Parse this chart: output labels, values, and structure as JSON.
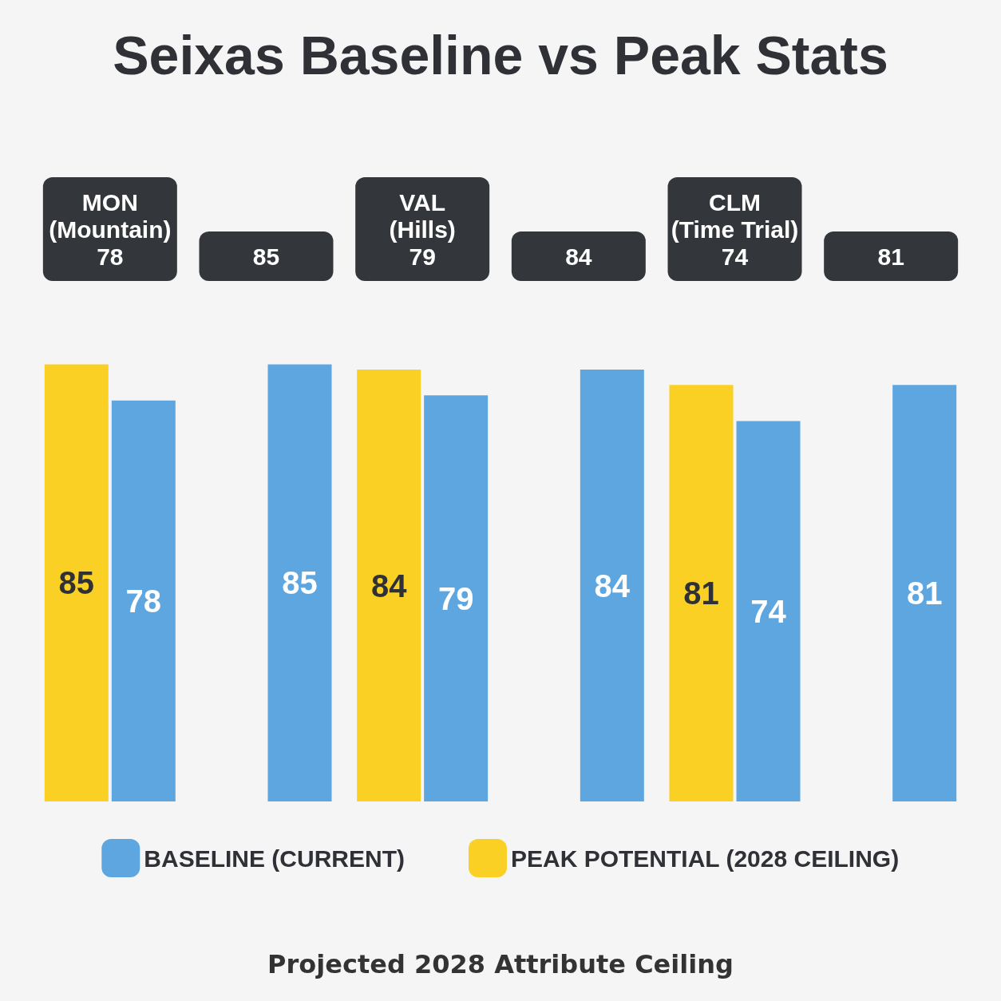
{
  "chart_data": {
    "type": "bar",
    "title": "Seixas Baseline vs Peak Stats",
    "categories": [
      "MON\n(Mountain)\n78",
      "85",
      "VAL\n(Hills)\n79",
      "84",
      "CLM\n(Time Trial)\n74",
      "81"
    ],
    "series": [
      {
        "name": "PEAK POTENTIAL (2028 CEILING)",
        "color": "#f9d023",
        "values": [
          85,
          null,
          84,
          null,
          81,
          null
        ]
      },
      {
        "name": "BASELINE (CURRENT)",
        "color": "#5ea6e0",
        "values": [
          78,
          85,
          79,
          84,
          74,
          81
        ]
      }
    ],
    "data_labels": true,
    "legend": "bottom",
    "tick_labels": "x",
    "grid": false,
    "annotations": [
      "Projected 2028 Attribute Ceiling"
    ]
  }
}
